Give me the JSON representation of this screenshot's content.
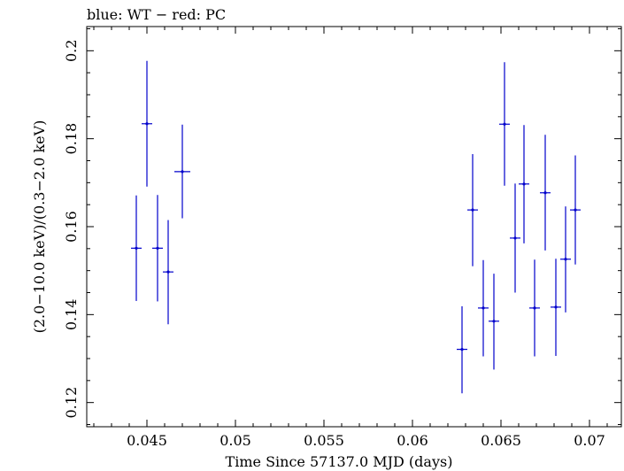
{
  "chart_data": {
    "type": "scatter",
    "title": "blue: WT − red: PC",
    "xlabel": "Time Since 57137.0 MJD (days)",
    "ylabel": "(2.0−10.0 keV)/(0.3−2.0 keV)",
    "xlim": [
      0.0416,
      0.0718
    ],
    "ylim": [
      0.1145,
      0.2055
    ],
    "xticks": [
      {
        "v": 0.045,
        "label": "0.045"
      },
      {
        "v": 0.05,
        "label": "0.05"
      },
      {
        "v": 0.055,
        "label": "0.055"
      },
      {
        "v": 0.06,
        "label": "0.06"
      },
      {
        "v": 0.065,
        "label": "0.065"
      },
      {
        "v": 0.07,
        "label": "0.07"
      }
    ],
    "yticks": [
      {
        "v": 0.12,
        "label": "0.12"
      },
      {
        "v": 0.14,
        "label": "0.14"
      },
      {
        "v": 0.16,
        "label": "0.16"
      },
      {
        "v": 0.18,
        "label": "0.18"
      },
      {
        "v": 0.2,
        "label": "0.2"
      }
    ],
    "grid": false,
    "series": [
      {
        "color": "#0000cc",
        "points": [
          {
            "x": 0.0444,
            "xerr": 0.0003,
            "y": 0.1551,
            "yerr_lo": 0.012,
            "yerr_hi": 0.012
          },
          {
            "x": 0.045,
            "xerr": 0.0003,
            "y": 0.1834,
            "yerr_lo": 0.0143,
            "yerr_hi": 0.0143
          },
          {
            "x": 0.0456,
            "xerr": 0.0003,
            "y": 0.1551,
            "yerr_lo": 0.0121,
            "yerr_hi": 0.0121
          },
          {
            "x": 0.0462,
            "xerr": 0.0003,
            "y": 0.1497,
            "yerr_lo": 0.0119,
            "yerr_hi": 0.0118
          },
          {
            "x": 0.047,
            "xerr": 0.00045,
            "y": 0.1725,
            "yerr_lo": 0.0106,
            "yerr_hi": 0.0107
          },
          {
            "x": 0.0628,
            "xerr": 0.0003,
            "y": 0.1321,
            "yerr_lo": 0.01,
            "yerr_hi": 0.0098
          },
          {
            "x": 0.0634,
            "xerr": 0.0003,
            "y": 0.1638,
            "yerr_lo": 0.0128,
            "yerr_hi": 0.0127
          },
          {
            "x": 0.064,
            "xerr": 0.0003,
            "y": 0.1415,
            "yerr_lo": 0.011,
            "yerr_hi": 0.0109
          },
          {
            "x": 0.0646,
            "xerr": 0.0003,
            "y": 0.1385,
            "yerr_lo": 0.011,
            "yerr_hi": 0.0108
          },
          {
            "x": 0.0652,
            "xerr": 0.0003,
            "y": 0.1833,
            "yerr_lo": 0.014,
            "yerr_hi": 0.0141
          },
          {
            "x": 0.0658,
            "xerr": 0.0003,
            "y": 0.1574,
            "yerr_lo": 0.0124,
            "yerr_hi": 0.0124
          },
          {
            "x": 0.0663,
            "xerr": 0.0003,
            "y": 0.1697,
            "yerr_lo": 0.0135,
            "yerr_hi": 0.0134
          },
          {
            "x": 0.0669,
            "xerr": 0.0003,
            "y": 0.1415,
            "yerr_lo": 0.011,
            "yerr_hi": 0.011
          },
          {
            "x": 0.0675,
            "xerr": 0.0003,
            "y": 0.1677,
            "yerr_lo": 0.0131,
            "yerr_hi": 0.0132
          },
          {
            "x": 0.0681,
            "xerr": 0.0003,
            "y": 0.1417,
            "yerr_lo": 0.0111,
            "yerr_hi": 0.011
          },
          {
            "x": 0.06865,
            "xerr": 0.0003,
            "y": 0.1526,
            "yerr_lo": 0.0121,
            "yerr_hi": 0.012
          },
          {
            "x": 0.0692,
            "xerr": 0.0003,
            "y": 0.1638,
            "yerr_lo": 0.0124,
            "yerr_hi": 0.0124
          }
        ]
      }
    ]
  }
}
